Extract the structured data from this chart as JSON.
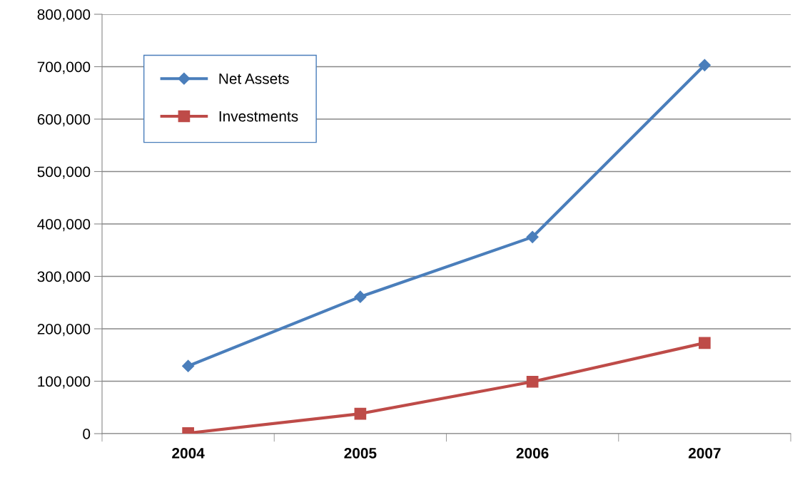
{
  "chart_data": {
    "type": "line",
    "categories": [
      "2004",
      "2005",
      "2006",
      "2007"
    ],
    "series": [
      {
        "name": "Net Assets",
        "color": "#4a7ebb",
        "marker": "diamond",
        "values": [
          129000,
          261000,
          375000,
          703000
        ]
      },
      {
        "name": "Investments",
        "color": "#be4b48",
        "marker": "square",
        "values": [
          1000,
          38000,
          99000,
          173000
        ]
      }
    ],
    "ylim": [
      0,
      800000
    ],
    "yticks": [
      {
        "value": 0,
        "label": "0"
      },
      {
        "value": 100000,
        "label": "100,000"
      },
      {
        "value": 200000,
        "label": "200,000"
      },
      {
        "value": 300000,
        "label": "300,000"
      },
      {
        "value": 400000,
        "label": "400,000"
      },
      {
        "value": 500000,
        "label": "500,000"
      },
      {
        "value": 600000,
        "label": "600,000"
      },
      {
        "value": 700000,
        "label": "700,000"
      },
      {
        "value": 800000,
        "label": "800,000"
      }
    ],
    "grid": "y",
    "legend": "top left",
    "line_style": "solid"
  }
}
